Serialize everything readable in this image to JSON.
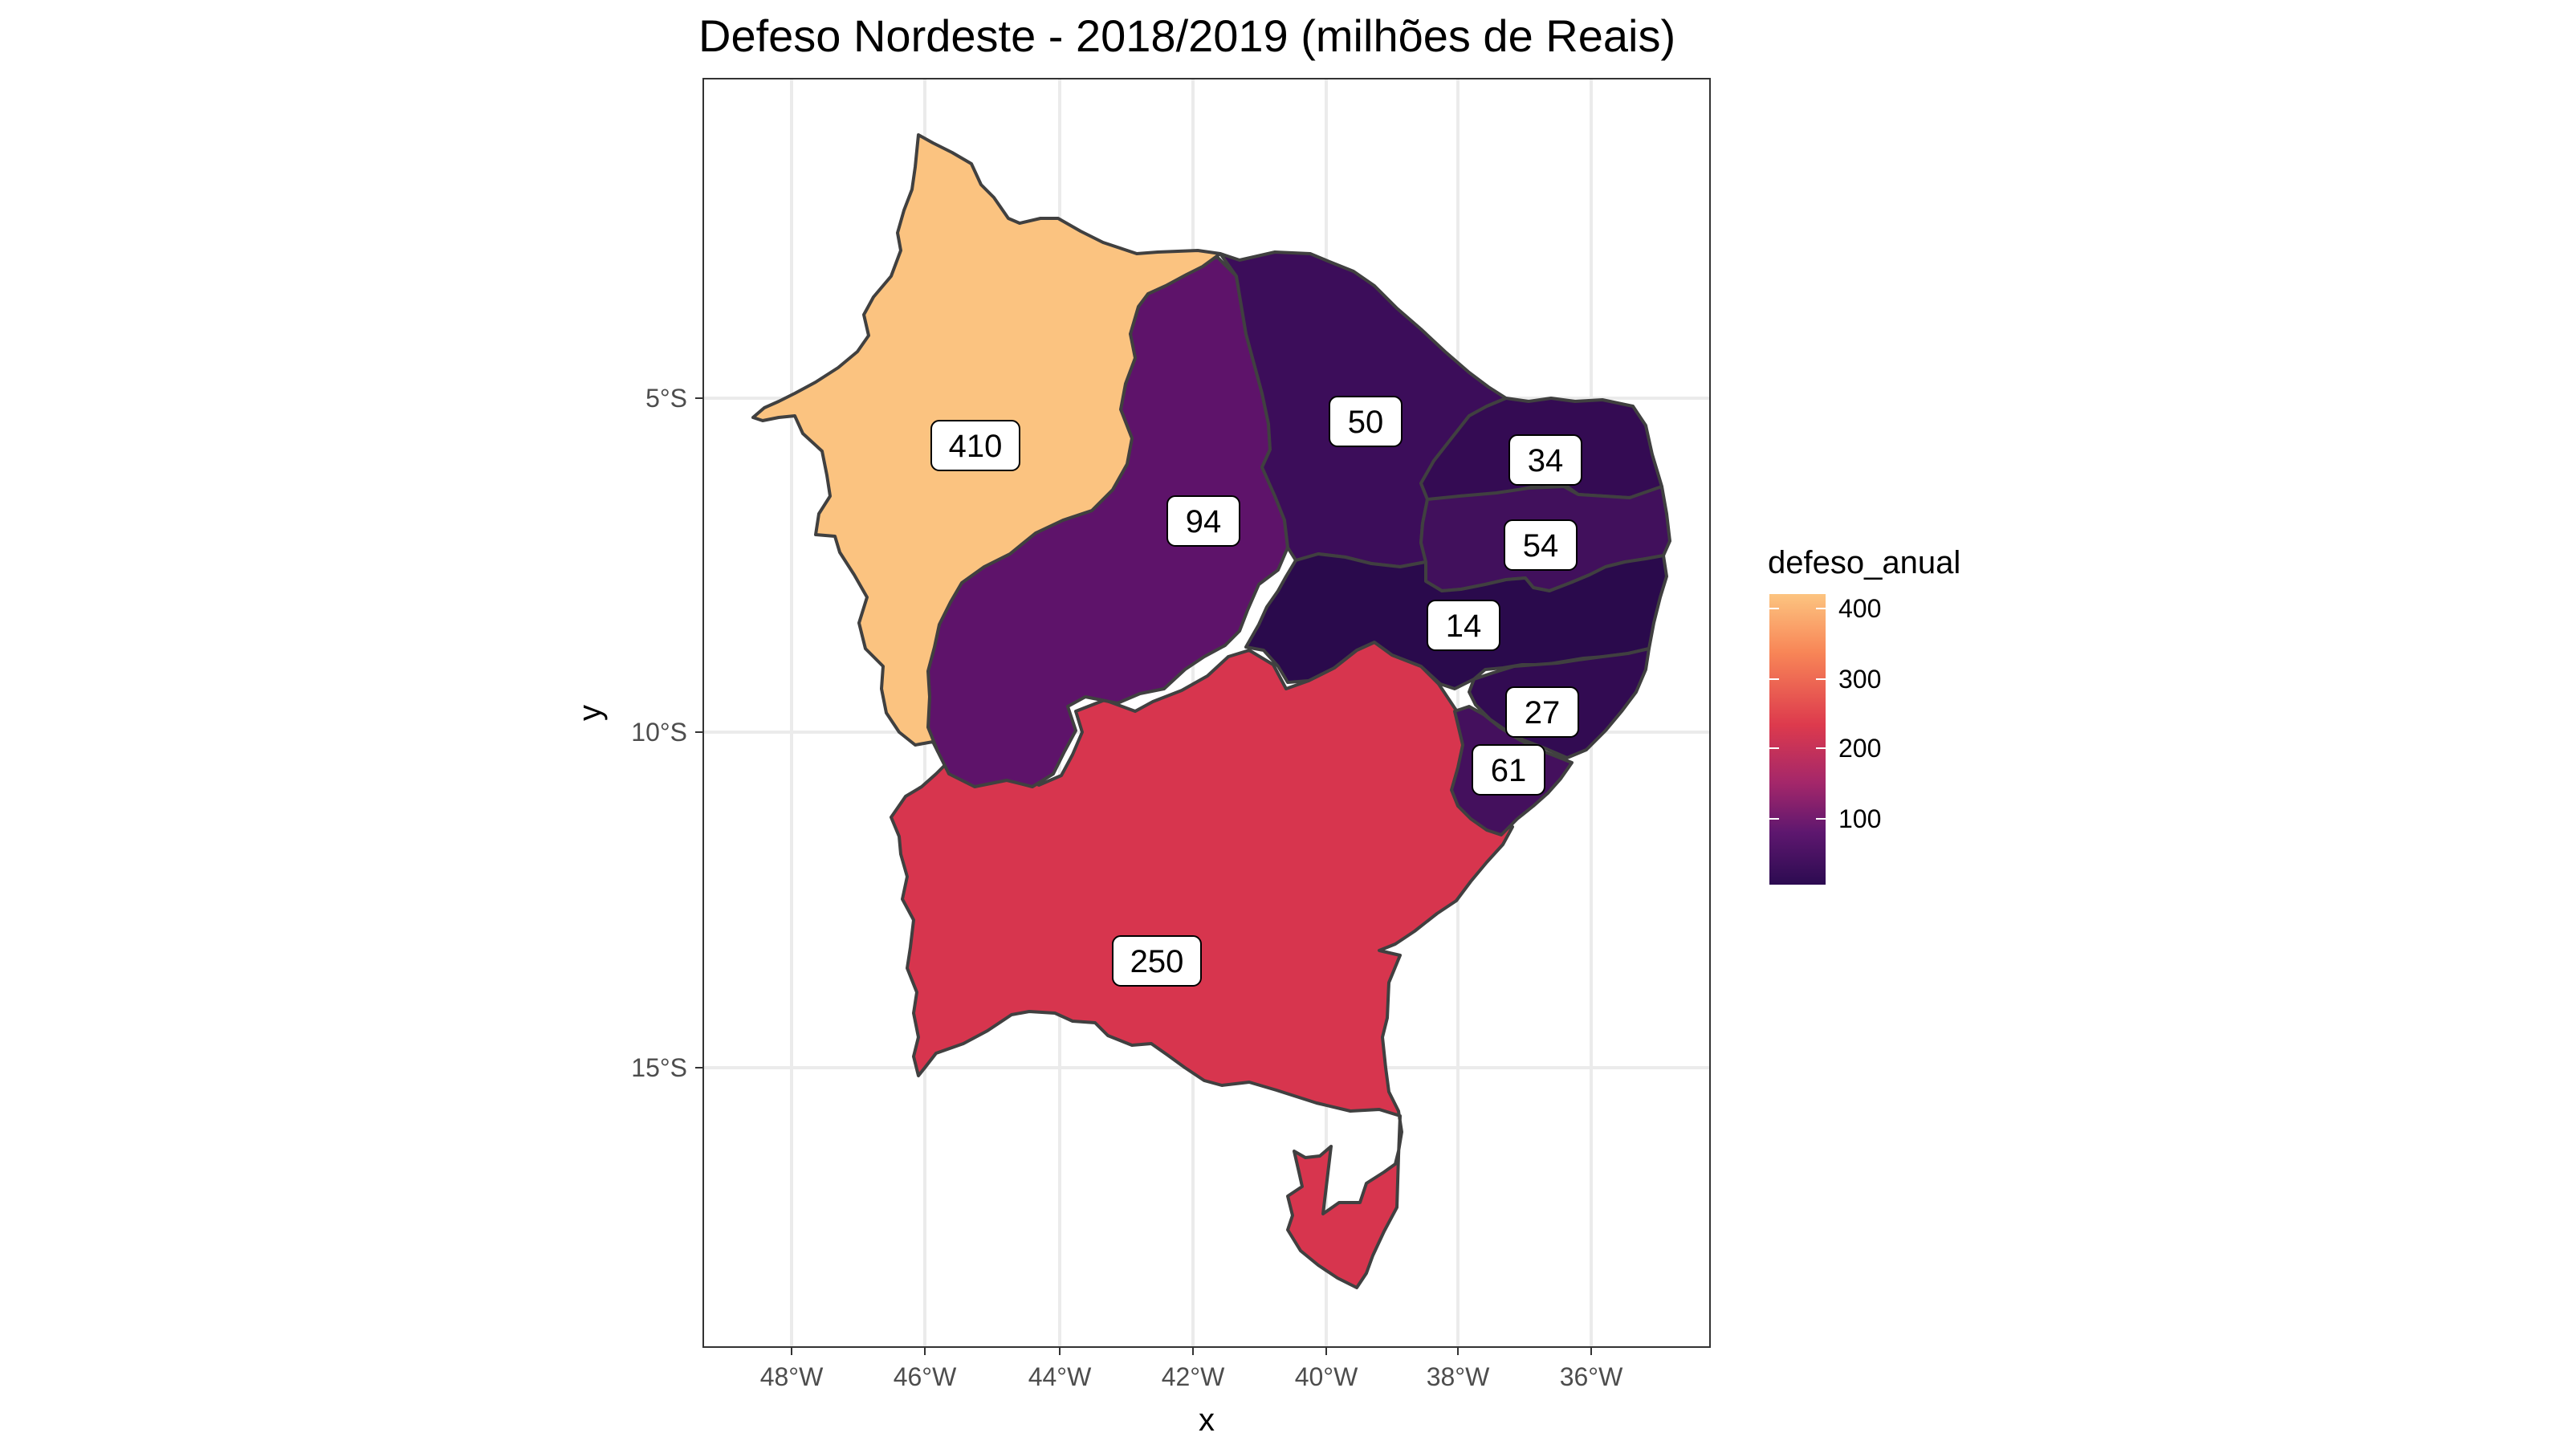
{
  "title": "Defeso Nordeste - 2018/2019 (milhões de Reais)",
  "chart_data": {
    "type": "choropleth-map",
    "title": "Defeso Nordeste - 2018/2019 (milhões de Reais)",
    "xlabel": "x",
    "ylabel": "y",
    "x_ticks": [
      "48°W",
      "46°W",
      "44°W",
      "42°W",
      "40°W",
      "38°W",
      "36°W"
    ],
    "y_ticks": [
      "5°S",
      "10°S",
      "15°S"
    ],
    "grid": true,
    "legend": {
      "title": "defeso_anual",
      "placement": "right",
      "ticks": [
        "400",
        "300",
        "200",
        "100"
      ],
      "colors": [
        "#fcc480",
        "#f88657",
        "#dd3a4d",
        "#a4276a",
        "#5e176f",
        "#2c0b51"
      ]
    },
    "regions": [
      {
        "state": "MA",
        "value": 410,
        "label": "410",
        "color": "#fbc380"
      },
      {
        "state": "PI",
        "value": 94,
        "label": "94",
        "color": "#5e136a"
      },
      {
        "state": "CE",
        "value": 50,
        "label": "50",
        "color": "#3c0d5a"
      },
      {
        "state": "RN",
        "value": 34,
        "label": "34",
        "color": "#340b53"
      },
      {
        "state": "PB",
        "value": 54,
        "label": "54",
        "color": "#41105c"
      },
      {
        "state": "PE",
        "value": 14,
        "label": "14",
        "color": "#2a0a4c"
      },
      {
        "state": "AL",
        "value": 27,
        "label": "27",
        "color": "#320b52"
      },
      {
        "state": "SE",
        "value": 61,
        "label": "61",
        "color": "#44105d"
      },
      {
        "state": "BA",
        "value": 250,
        "label": "250",
        "color": "#d7354e"
      }
    ]
  }
}
